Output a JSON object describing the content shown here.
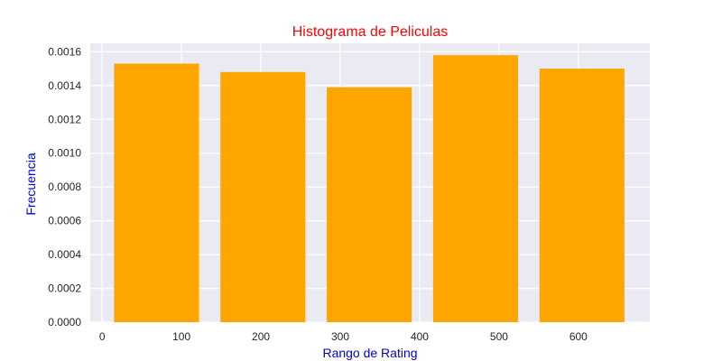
{
  "chart_data": {
    "type": "bar",
    "title": "Histograma de Peliculas",
    "xlabel": "Rango de Rating",
    "ylabel": "Frecuencia",
    "title_color": "#ff0000",
    "label_color": "#0000cc",
    "bar_color": "#ffa500",
    "background_color": "#eaeaf2",
    "grid": true,
    "x_ticks": [
      0,
      100,
      200,
      300,
      400,
      500,
      600
    ],
    "y_ticks": [
      "0.0000",
      "0.0002",
      "0.0004",
      "0.0006",
      "0.0008",
      "0.0010",
      "0.0012",
      "0.0014",
      "0.0016"
    ],
    "xlim": [
      -15,
      690
    ],
    "ylim": [
      0,
      0.00165
    ],
    "bins": [
      {
        "start": 15,
        "end": 122,
        "value": 0.00153
      },
      {
        "start": 149,
        "end": 256,
        "value": 0.00148
      },
      {
        "start": 283,
        "end": 390,
        "value": 0.00139
      },
      {
        "start": 417,
        "end": 524,
        "value": 0.00158
      },
      {
        "start": 551,
        "end": 658,
        "value": 0.0015
      }
    ]
  }
}
